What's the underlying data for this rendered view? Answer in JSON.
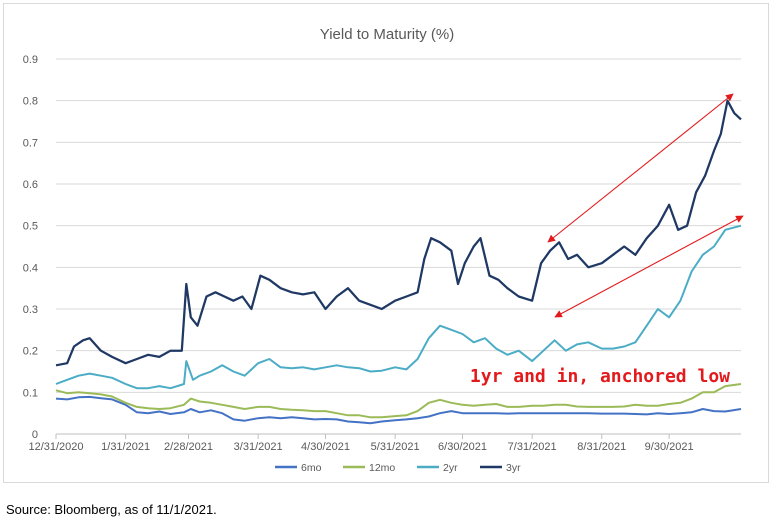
{
  "chart_data": {
    "type": "line",
    "title": "Yield to Maturity (%)",
    "xlabel": "",
    "ylabel": "",
    "ylim": [
      0,
      0.9
    ],
    "yticks": [
      "0",
      "0.1",
      "0.2",
      "0.3",
      "0.4",
      "0.5",
      "0.6",
      "0.7",
      "0.8",
      "0.9"
    ],
    "xlim": [
      "2020-12-31",
      "2021-11-01"
    ],
    "xticks": [
      "12/31/2020",
      "1/31/2021",
      "2/28/2021",
      "3/31/2021",
      "4/30/2021",
      "5/31/2021",
      "6/30/2021",
      "7/31/2021",
      "8/31/2021",
      "9/30/2021"
    ],
    "grid": true,
    "legend": "bottom",
    "annotation": "1yr and in, anchored low",
    "series": [
      {
        "name": "6mo",
        "color": "#4472c4",
        "points": [
          [
            "2020-12-31",
            0.085
          ],
          [
            "2021-01-05",
            0.083
          ],
          [
            "2021-01-10",
            0.088
          ],
          [
            "2021-01-15",
            0.089
          ],
          [
            "2021-01-20",
            0.086
          ],
          [
            "2021-01-25",
            0.083
          ],
          [
            "2021-01-31",
            0.07
          ],
          [
            "2021-02-05",
            0.052
          ],
          [
            "2021-02-10",
            0.05
          ],
          [
            "2021-02-15",
            0.054
          ],
          [
            "2021-02-20",
            0.048
          ],
          [
            "2021-02-26",
            0.052
          ],
          [
            "2021-03-01",
            0.06
          ],
          [
            "2021-03-05",
            0.052
          ],
          [
            "2021-03-10",
            0.057
          ],
          [
            "2021-03-15",
            0.05
          ],
          [
            "2021-03-20",
            0.035
          ],
          [
            "2021-03-25",
            0.032
          ],
          [
            "2021-03-31",
            0.038
          ],
          [
            "2021-04-05",
            0.04
          ],
          [
            "2021-04-10",
            0.038
          ],
          [
            "2021-04-15",
            0.04
          ],
          [
            "2021-04-20",
            0.038
          ],
          [
            "2021-04-25",
            0.035
          ],
          [
            "2021-04-30",
            0.036
          ],
          [
            "2021-05-05",
            0.035
          ],
          [
            "2021-05-10",
            0.03
          ],
          [
            "2021-05-15",
            0.028
          ],
          [
            "2021-05-20",
            0.026
          ],
          [
            "2021-05-25",
            0.03
          ],
          [
            "2021-05-31",
            0.033
          ],
          [
            "2021-06-05",
            0.035
          ],
          [
            "2021-06-10",
            0.038
          ],
          [
            "2021-06-15",
            0.042
          ],
          [
            "2021-06-20",
            0.05
          ],
          [
            "2021-06-25",
            0.055
          ],
          [
            "2021-06-30",
            0.05
          ],
          [
            "2021-07-05",
            0.05
          ],
          [
            "2021-07-10",
            0.05
          ],
          [
            "2021-07-15",
            0.05
          ],
          [
            "2021-07-20",
            0.049
          ],
          [
            "2021-07-25",
            0.05
          ],
          [
            "2021-07-31",
            0.05
          ],
          [
            "2021-08-05",
            0.05
          ],
          [
            "2021-08-10",
            0.05
          ],
          [
            "2021-08-15",
            0.05
          ],
          [
            "2021-08-20",
            0.05
          ],
          [
            "2021-08-25",
            0.05
          ],
          [
            "2021-08-31",
            0.049
          ],
          [
            "2021-09-05",
            0.049
          ],
          [
            "2021-09-10",
            0.049
          ],
          [
            "2021-09-15",
            0.048
          ],
          [
            "2021-09-20",
            0.047
          ],
          [
            "2021-09-25",
            0.05
          ],
          [
            "2021-09-30",
            0.048
          ],
          [
            "2021-10-05",
            0.05
          ],
          [
            "2021-10-10",
            0.052
          ],
          [
            "2021-10-15",
            0.06
          ],
          [
            "2021-10-20",
            0.055
          ],
          [
            "2021-10-25",
            0.054
          ],
          [
            "2021-11-01",
            0.06
          ]
        ]
      },
      {
        "name": "12mo",
        "color": "#9bbb59",
        "points": [
          [
            "2020-12-31",
            0.105
          ],
          [
            "2021-01-05",
            0.098
          ],
          [
            "2021-01-10",
            0.1
          ],
          [
            "2021-01-15",
            0.098
          ],
          [
            "2021-01-20",
            0.095
          ],
          [
            "2021-01-25",
            0.09
          ],
          [
            "2021-01-31",
            0.075
          ],
          [
            "2021-02-05",
            0.065
          ],
          [
            "2021-02-10",
            0.062
          ],
          [
            "2021-02-15",
            0.06
          ],
          [
            "2021-02-20",
            0.062
          ],
          [
            "2021-02-26",
            0.07
          ],
          [
            "2021-03-01",
            0.085
          ],
          [
            "2021-03-05",
            0.078
          ],
          [
            "2021-03-10",
            0.075
          ],
          [
            "2021-03-15",
            0.07
          ],
          [
            "2021-03-20",
            0.065
          ],
          [
            "2021-03-25",
            0.06
          ],
          [
            "2021-03-31",
            0.065
          ],
          [
            "2021-04-05",
            0.065
          ],
          [
            "2021-04-10",
            0.06
          ],
          [
            "2021-04-15",
            0.058
          ],
          [
            "2021-04-20",
            0.057
          ],
          [
            "2021-04-25",
            0.055
          ],
          [
            "2021-04-30",
            0.055
          ],
          [
            "2021-05-05",
            0.05
          ],
          [
            "2021-05-10",
            0.045
          ],
          [
            "2021-05-15",
            0.045
          ],
          [
            "2021-05-20",
            0.04
          ],
          [
            "2021-05-25",
            0.04
          ],
          [
            "2021-05-31",
            0.043
          ],
          [
            "2021-06-05",
            0.045
          ],
          [
            "2021-06-10",
            0.055
          ],
          [
            "2021-06-15",
            0.075
          ],
          [
            "2021-06-20",
            0.082
          ],
          [
            "2021-06-25",
            0.075
          ],
          [
            "2021-06-30",
            0.07
          ],
          [
            "2021-07-05",
            0.068
          ],
          [
            "2021-07-10",
            0.07
          ],
          [
            "2021-07-15",
            0.072
          ],
          [
            "2021-07-20",
            0.065
          ],
          [
            "2021-07-25",
            0.065
          ],
          [
            "2021-07-31",
            0.068
          ],
          [
            "2021-08-05",
            0.068
          ],
          [
            "2021-08-10",
            0.07
          ],
          [
            "2021-08-15",
            0.07
          ],
          [
            "2021-08-20",
            0.066
          ],
          [
            "2021-08-25",
            0.065
          ],
          [
            "2021-08-31",
            0.065
          ],
          [
            "2021-09-05",
            0.065
          ],
          [
            "2021-09-10",
            0.066
          ],
          [
            "2021-09-15",
            0.07
          ],
          [
            "2021-09-20",
            0.068
          ],
          [
            "2021-09-25",
            0.068
          ],
          [
            "2021-09-30",
            0.072
          ],
          [
            "2021-10-05",
            0.075
          ],
          [
            "2021-10-10",
            0.085
          ],
          [
            "2021-10-15",
            0.1
          ],
          [
            "2021-10-20",
            0.1
          ],
          [
            "2021-10-25",
            0.115
          ],
          [
            "2021-11-01",
            0.12
          ]
        ]
      },
      {
        "name": "2yr",
        "color": "#4bacc6",
        "points": [
          [
            "2020-12-31",
            0.12
          ],
          [
            "2021-01-05",
            0.13
          ],
          [
            "2021-01-10",
            0.14
          ],
          [
            "2021-01-15",
            0.145
          ],
          [
            "2021-01-20",
            0.14
          ],
          [
            "2021-01-25",
            0.135
          ],
          [
            "2021-01-31",
            0.12
          ],
          [
            "2021-02-05",
            0.11
          ],
          [
            "2021-02-10",
            0.11
          ],
          [
            "2021-02-15",
            0.115
          ],
          [
            "2021-02-20",
            0.11
          ],
          [
            "2021-02-26",
            0.12
          ],
          [
            "2021-02-27",
            0.175
          ],
          [
            "2021-03-02",
            0.13
          ],
          [
            "2021-03-05",
            0.14
          ],
          [
            "2021-03-10",
            0.15
          ],
          [
            "2021-03-15",
            0.165
          ],
          [
            "2021-03-20",
            0.15
          ],
          [
            "2021-03-25",
            0.14
          ],
          [
            "2021-03-31",
            0.17
          ],
          [
            "2021-04-05",
            0.18
          ],
          [
            "2021-04-10",
            0.16
          ],
          [
            "2021-04-15",
            0.158
          ],
          [
            "2021-04-20",
            0.16
          ],
          [
            "2021-04-25",
            0.155
          ],
          [
            "2021-04-30",
            0.16
          ],
          [
            "2021-05-05",
            0.165
          ],
          [
            "2021-05-10",
            0.16
          ],
          [
            "2021-05-15",
            0.158
          ],
          [
            "2021-05-20",
            0.15
          ],
          [
            "2021-05-25",
            0.152
          ],
          [
            "2021-05-31",
            0.16
          ],
          [
            "2021-06-05",
            0.155
          ],
          [
            "2021-06-10",
            0.18
          ],
          [
            "2021-06-15",
            0.23
          ],
          [
            "2021-06-20",
            0.26
          ],
          [
            "2021-06-25",
            0.25
          ],
          [
            "2021-06-30",
            0.24
          ],
          [
            "2021-07-05",
            0.22
          ],
          [
            "2021-07-10",
            0.23
          ],
          [
            "2021-07-15",
            0.205
          ],
          [
            "2021-07-20",
            0.19
          ],
          [
            "2021-07-25",
            0.2
          ],
          [
            "2021-07-31",
            0.175
          ],
          [
            "2021-08-05",
            0.2
          ],
          [
            "2021-08-10",
            0.225
          ],
          [
            "2021-08-15",
            0.2
          ],
          [
            "2021-08-20",
            0.215
          ],
          [
            "2021-08-25",
            0.22
          ],
          [
            "2021-08-31",
            0.205
          ],
          [
            "2021-09-05",
            0.205
          ],
          [
            "2021-09-10",
            0.21
          ],
          [
            "2021-09-15",
            0.22
          ],
          [
            "2021-09-20",
            0.26
          ],
          [
            "2021-09-25",
            0.3
          ],
          [
            "2021-09-30",
            0.28
          ],
          [
            "2021-10-05",
            0.32
          ],
          [
            "2021-10-10",
            0.39
          ],
          [
            "2021-10-15",
            0.43
          ],
          [
            "2021-10-20",
            0.45
          ],
          [
            "2021-10-25",
            0.49
          ],
          [
            "2021-11-01",
            0.5
          ]
        ]
      },
      {
        "name": "3yr",
        "color": "#1f3864",
        "points": [
          [
            "2020-12-31",
            0.165
          ],
          [
            "2021-01-05",
            0.17
          ],
          [
            "2021-01-08",
            0.21
          ],
          [
            "2021-01-12",
            0.225
          ],
          [
            "2021-01-15",
            0.23
          ],
          [
            "2021-01-20",
            0.2
          ],
          [
            "2021-01-25",
            0.185
          ],
          [
            "2021-01-31",
            0.17
          ],
          [
            "2021-02-05",
            0.18
          ],
          [
            "2021-02-10",
            0.19
          ],
          [
            "2021-02-15",
            0.185
          ],
          [
            "2021-02-20",
            0.2
          ],
          [
            "2021-02-25",
            0.2
          ],
          [
            "2021-02-27",
            0.36
          ],
          [
            "2021-03-01",
            0.28
          ],
          [
            "2021-03-04",
            0.26
          ],
          [
            "2021-03-08",
            0.33
          ],
          [
            "2021-03-12",
            0.34
          ],
          [
            "2021-03-16",
            0.33
          ],
          [
            "2021-03-20",
            0.32
          ],
          [
            "2021-03-24",
            0.33
          ],
          [
            "2021-03-28",
            0.3
          ],
          [
            "2021-04-01",
            0.38
          ],
          [
            "2021-04-05",
            0.37
          ],
          [
            "2021-04-10",
            0.35
          ],
          [
            "2021-04-15",
            0.34
          ],
          [
            "2021-04-20",
            0.335
          ],
          [
            "2021-04-25",
            0.34
          ],
          [
            "2021-04-30",
            0.3
          ],
          [
            "2021-05-05",
            0.33
          ],
          [
            "2021-05-10",
            0.35
          ],
          [
            "2021-05-15",
            0.32
          ],
          [
            "2021-05-20",
            0.31
          ],
          [
            "2021-05-25",
            0.3
          ],
          [
            "2021-05-31",
            0.32
          ],
          [
            "2021-06-05",
            0.33
          ],
          [
            "2021-06-10",
            0.34
          ],
          [
            "2021-06-13",
            0.42
          ],
          [
            "2021-06-16",
            0.47
          ],
          [
            "2021-06-20",
            0.46
          ],
          [
            "2021-06-25",
            0.44
          ],
          [
            "2021-06-28",
            0.36
          ],
          [
            "2021-07-01",
            0.41
          ],
          [
            "2021-07-05",
            0.45
          ],
          [
            "2021-07-08",
            0.47
          ],
          [
            "2021-07-12",
            0.38
          ],
          [
            "2021-07-16",
            0.37
          ],
          [
            "2021-07-20",
            0.35
          ],
          [
            "2021-07-25",
            0.33
          ],
          [
            "2021-07-31",
            0.32
          ],
          [
            "2021-08-04",
            0.41
          ],
          [
            "2021-08-08",
            0.44
          ],
          [
            "2021-08-12",
            0.46
          ],
          [
            "2021-08-16",
            0.42
          ],
          [
            "2021-08-20",
            0.43
          ],
          [
            "2021-08-25",
            0.4
          ],
          [
            "2021-08-31",
            0.41
          ],
          [
            "2021-09-05",
            0.43
          ],
          [
            "2021-09-10",
            0.45
          ],
          [
            "2021-09-15",
            0.43
          ],
          [
            "2021-09-20",
            0.47
          ],
          [
            "2021-09-25",
            0.5
          ],
          [
            "2021-09-30",
            0.55
          ],
          [
            "2021-10-04",
            0.49
          ],
          [
            "2021-10-08",
            0.5
          ],
          [
            "2021-10-12",
            0.58
          ],
          [
            "2021-10-16",
            0.62
          ],
          [
            "2021-10-20",
            0.68
          ],
          [
            "2021-10-23",
            0.72
          ],
          [
            "2021-10-26",
            0.8
          ],
          [
            "2021-10-29",
            0.77
          ],
          [
            "2021-11-01",
            0.755
          ]
        ]
      }
    ]
  },
  "source_note": "Source: Bloomberg, as of 11/1/2021."
}
